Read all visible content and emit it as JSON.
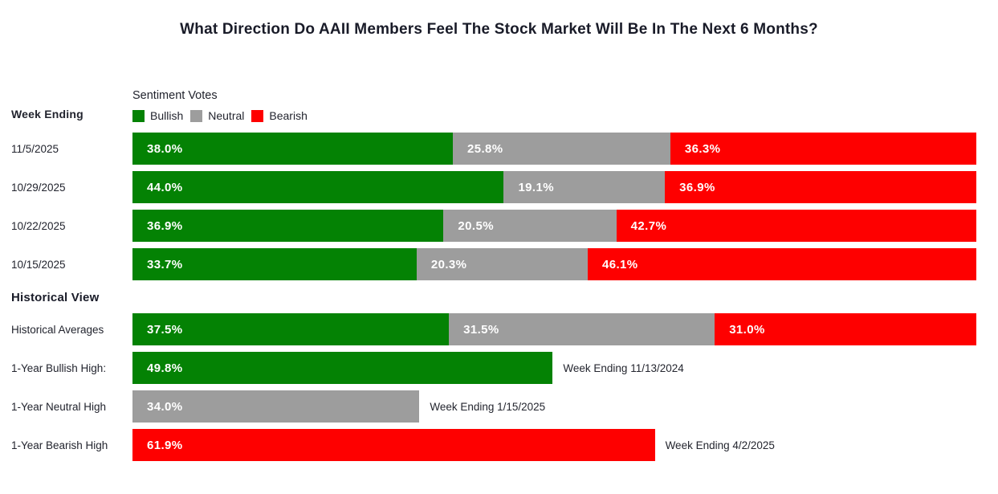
{
  "title": "What Direction Do AAII Members Feel The Stock Market Will Be In The Next 6 Months?",
  "chart_data": {
    "type": "bar",
    "orientation": "horizontal",
    "stacked": true,
    "x_range_pct": [
      0,
      100
    ],
    "grid": false,
    "legend_position": "top",
    "legend_title": "Sentiment Votes",
    "series_names": [
      "Bullish",
      "Neutral",
      "Bearish"
    ],
    "colors": {
      "bullish": "#048204",
      "neutral": "#9d9d9d",
      "bearish": "#fe0000"
    },
    "weekly": {
      "header": "Week Ending",
      "rows": [
        {
          "label": "11/5/2025",
          "bullish": 38.0,
          "neutral": 25.8,
          "bearish": 36.3
        },
        {
          "label": "10/29/2025",
          "bullish": 44.0,
          "neutral": 19.1,
          "bearish": 36.9
        },
        {
          "label": "10/22/2025",
          "bullish": 36.9,
          "neutral": 20.5,
          "bearish": 42.7
        },
        {
          "label": "10/15/2025",
          "bullish": 33.7,
          "neutral": 20.3,
          "bearish": 46.1
        }
      ]
    },
    "historical": {
      "header": "Historical View",
      "averages": {
        "label": "Historical Averages",
        "bullish": 37.5,
        "neutral": 31.5,
        "bearish": 31.0
      },
      "highs": [
        {
          "label": "1-Year Bullish High:",
          "series": "Bullish",
          "value": 49.8,
          "note": "Week Ending 11/13/2024"
        },
        {
          "label": "1-Year Neutral High",
          "series": "Neutral",
          "value": 34.0,
          "note": "Week Ending 1/15/2025"
        },
        {
          "label": "1-Year Bearish High",
          "series": "Bearish",
          "value": 61.9,
          "note": "Week Ending 4/2/2025"
        }
      ]
    }
  }
}
